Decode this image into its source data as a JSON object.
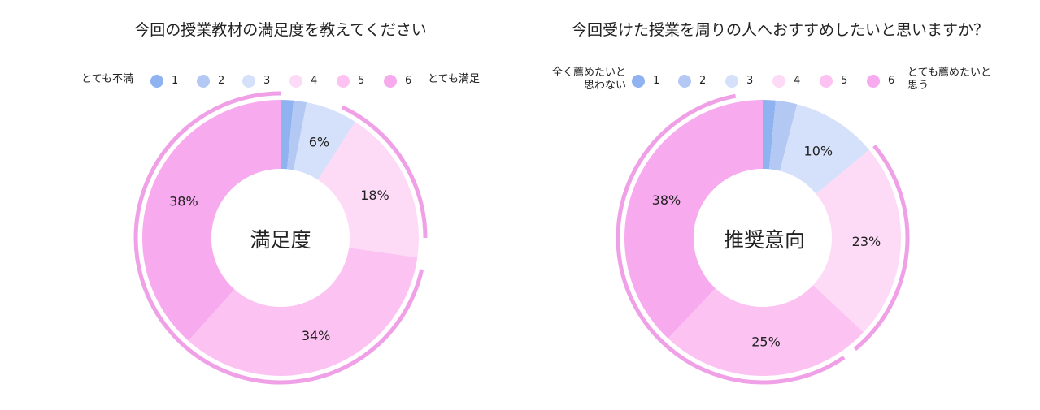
{
  "chart_data": [
    {
      "type": "pie",
      "title": "今回の授業教材の満足度を教えてください",
      "center_label": "満足度",
      "legend": {
        "low_label": "とても不満",
        "high_label": "とても満足",
        "placement": "top"
      },
      "categories": [
        "1",
        "2",
        "3",
        "4",
        "5",
        "6"
      ],
      "values": [
        1.5,
        1.5,
        6,
        18,
        34,
        38
      ],
      "data_labels": [
        "",
        "",
        "6%",
        "18%",
        "34%",
        "38%"
      ],
      "colors": [
        "#8fb2f0",
        "#b3c9f3",
        "#d5e1fa",
        "#fddaf6",
        "#fcc3f2",
        "#f7aaee"
      ],
      "highlight_arcs": [
        {
          "start_pct": 7,
          "end_pct": 25,
          "color": "#f0a0e6"
        },
        {
          "start_pct": 28.5,
          "end_pct": 100,
          "color": "#f0a0e6"
        }
      ]
    },
    {
      "type": "pie",
      "title": "今回受けた授業を周りの人へおすすめしたいと思いますか？",
      "center_label": "推奨意向",
      "legend": {
        "low_label_lines": [
          "全く薦めたいと",
          "思わない"
        ],
        "high_label_lines": [
          "とても薦めたいと",
          "思う"
        ],
        "placement": "top"
      },
      "categories": [
        "1",
        "2",
        "3",
        "4",
        "5",
        "6"
      ],
      "values": [
        1.5,
        2.5,
        10,
        23,
        25,
        38
      ],
      "data_labels": [
        "",
        "",
        "10%",
        "23%",
        "25%",
        "38%"
      ],
      "colors": [
        "#8fb2f0",
        "#b3c9f3",
        "#d5e1fa",
        "#fddaf6",
        "#fcc3f2",
        "#f7aaee"
      ],
      "highlight_arcs": [
        {
          "start_pct": 14,
          "end_pct": 39,
          "color": "#f0a0e6"
        },
        {
          "start_pct": 40.5,
          "end_pct": 97,
          "color": "#f0a0e6"
        }
      ]
    }
  ]
}
